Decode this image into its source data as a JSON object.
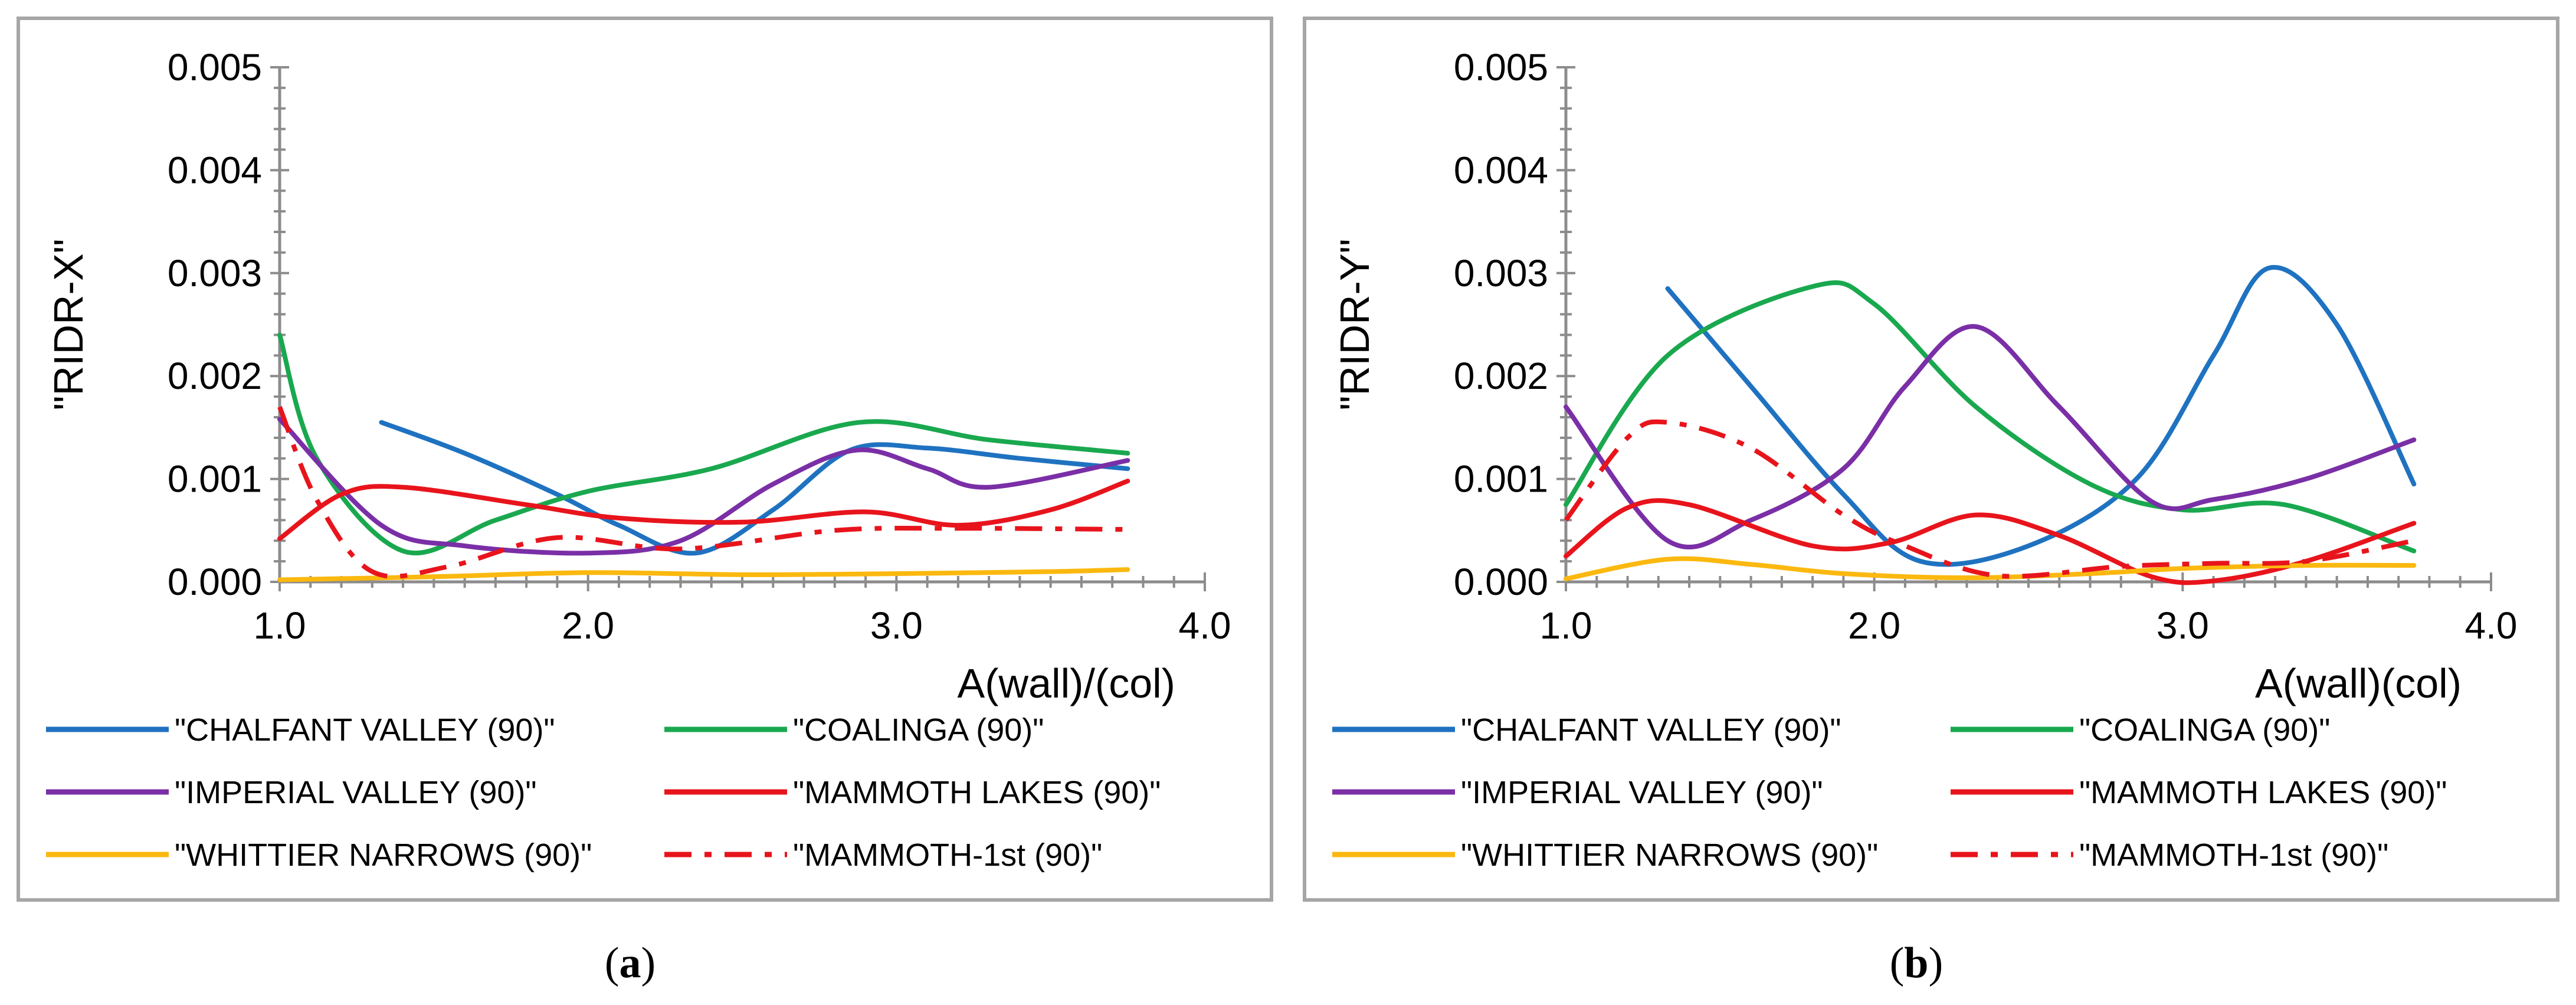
{
  "chart_data": [
    {
      "type": "line",
      "panel": "a",
      "xlabel": "A(wall)/(col)",
      "ylabel": "\"RIDR-X\"",
      "xlim": [
        1.0,
        4.0
      ],
      "ylim": [
        0.0,
        0.005
      ],
      "x_ticks": [
        "1.0",
        "2.0",
        "3.0",
        "4.0"
      ],
      "y_ticks": [
        "0.000",
        "0.001",
        "0.002",
        "0.003",
        "0.004",
        "0.005"
      ],
      "grid": false,
      "legend_position": "bottom",
      "series": [
        {
          "name": "\"CHALFANT VALLEY (90)\"",
          "color": "#1f72c0",
          "dash": "solid",
          "points": [
            [
              1.33,
              0.00155
            ],
            [
              1.6,
              0.00125
            ],
            [
              1.9,
              0.00085
            ],
            [
              2.1,
              0.00055
            ],
            [
              2.35,
              0.00028
            ],
            [
              2.6,
              0.0007
            ],
            [
              2.85,
              0.00128
            ],
            [
              3.1,
              0.0013
            ],
            [
              3.4,
              0.0012
            ],
            [
              3.75,
              0.0011
            ]
          ]
        },
        {
          "name": "\"COALINGA (90)\"",
          "color": "#1aa84f",
          "dash": "solid",
          "points": [
            [
              1.0,
              0.0024
            ],
            [
              1.12,
              0.0012
            ],
            [
              1.4,
              0.0003
            ],
            [
              1.7,
              0.0006
            ],
            [
              2.0,
              0.00088
            ],
            [
              2.4,
              0.0011
            ],
            [
              2.88,
              0.00155
            ],
            [
              3.3,
              0.00138
            ],
            [
              3.75,
              0.00125
            ]
          ]
        },
        {
          "name": "\"IMPERIAL VALLEY (90)\"",
          "color": "#7a2fa6",
          "dash": "solid",
          "points": [
            [
              1.0,
              0.00158
            ],
            [
              1.33,
              0.00055
            ],
            [
              1.6,
              0.00035
            ],
            [
              2.0,
              0.00028
            ],
            [
              2.3,
              0.0004
            ],
            [
              2.6,
              0.00095
            ],
            [
              2.87,
              0.00128
            ],
            [
              3.1,
              0.0011
            ],
            [
              3.3,
              0.00092
            ],
            [
              3.75,
              0.00118
            ]
          ]
        },
        {
          "name": "\"MAMMOTH LAKES (90)\"",
          "color": "#e8141c",
          "dash": "solid",
          "points": [
            [
              1.0,
              0.00042
            ],
            [
              1.2,
              0.00085
            ],
            [
              1.4,
              0.00092
            ],
            [
              1.8,
              0.00075
            ],
            [
              2.1,
              0.00062
            ],
            [
              2.5,
              0.00058
            ],
            [
              2.9,
              0.00068
            ],
            [
              3.2,
              0.00055
            ],
            [
              3.5,
              0.0007
            ],
            [
              3.75,
              0.00098
            ]
          ]
        },
        {
          "name": "\"WHITTIER NARROWS (90)\"",
          "color": "#fbb80f",
          "dash": "solid",
          "points": [
            [
              1.0,
              2e-05
            ],
            [
              1.5,
              5e-05
            ],
            [
              2.0,
              9e-05
            ],
            [
              2.5,
              7e-05
            ],
            [
              3.0,
              8e-05
            ],
            [
              3.5,
              0.0001
            ],
            [
              3.75,
              0.00012
            ]
          ]
        },
        {
          "name": "\"MAMMOTH-1st (90)\"",
          "color": "#e8141c",
          "dash": "dashdot",
          "points": [
            [
              1.0,
              0.0017
            ],
            [
              1.12,
              0.0008
            ],
            [
              1.3,
              0.0001
            ],
            [
              1.55,
              0.00015
            ],
            [
              1.9,
              0.00043
            ],
            [
              2.3,
              0.00032
            ],
            [
              2.8,
              0.0005
            ],
            [
              3.2,
              0.00052
            ],
            [
              3.75,
              0.00051
            ]
          ]
        }
      ]
    },
    {
      "type": "line",
      "panel": "b",
      "xlabel": "A(wall)(col)",
      "ylabel": "\"RIDR-Y\"",
      "xlim": [
        1.0,
        4.0
      ],
      "ylim": [
        0.0,
        0.005
      ],
      "x_ticks": [
        "1.0",
        "2.0",
        "3.0",
        "4.0"
      ],
      "y_ticks": [
        "0.000",
        "0.001",
        "0.002",
        "0.003",
        "0.004",
        "0.005"
      ],
      "grid": false,
      "legend_position": "bottom",
      "series": [
        {
          "name": "\"CHALFANT VALLEY (90)\"",
          "color": "#1f72c0",
          "dash": "solid",
          "points": [
            [
              1.33,
              0.00285
            ],
            [
              1.6,
              0.0019
            ],
            [
              1.9,
              0.00085
            ],
            [
              2.15,
              0.0002
            ],
            [
              2.5,
              0.00035
            ],
            [
              2.85,
              0.001
            ],
            [
              3.1,
              0.0022
            ],
            [
              3.28,
              0.00305
            ],
            [
              3.5,
              0.0025
            ],
            [
              3.75,
              0.00095
            ]
          ]
        },
        {
          "name": "\"COALINGA (90)\"",
          "color": "#1aa84f",
          "dash": "solid",
          "points": [
            [
              1.0,
              0.00075
            ],
            [
              1.33,
              0.0022
            ],
            [
              1.8,
              0.00287
            ],
            [
              2.0,
              0.0027
            ],
            [
              2.33,
              0.0017
            ],
            [
              2.7,
              0.00095
            ],
            [
              3.0,
              0.0007
            ],
            [
              3.33,
              0.00075
            ],
            [
              3.75,
              0.0003
            ]
          ]
        },
        {
          "name": "\"IMPERIAL VALLEY (90)\"",
          "color": "#7a2fa6",
          "dash": "solid",
          "points": [
            [
              1.0,
              0.0017
            ],
            [
              1.33,
              0.0004
            ],
            [
              1.6,
              0.0006
            ],
            [
              1.9,
              0.0011
            ],
            [
              2.1,
              0.0019
            ],
            [
              2.33,
              0.00248
            ],
            [
              2.6,
              0.0017
            ],
            [
              2.9,
              0.00078
            ],
            [
              3.1,
              0.0008
            ],
            [
              3.4,
              0.001
            ],
            [
              3.75,
              0.00138
            ]
          ]
        },
        {
          "name": "\"MAMMOTH LAKES (90)\"",
          "color": "#e8141c",
          "dash": "solid",
          "points": [
            [
              1.0,
              0.00025
            ],
            [
              1.2,
              0.00072
            ],
            [
              1.4,
              0.00075
            ],
            [
              1.8,
              0.00035
            ],
            [
              2.05,
              0.00038
            ],
            [
              2.33,
              0.00065
            ],
            [
              2.6,
              0.00045
            ],
            [
              2.9,
              5e-05
            ],
            [
              3.1,
              1e-05
            ],
            [
              3.4,
              0.0002
            ],
            [
              3.75,
              0.00057
            ]
          ]
        },
        {
          "name": "\"WHITTIER NARROWS (90)\"",
          "color": "#fbb80f",
          "dash": "solid",
          "points": [
            [
              1.0,
              3e-05
            ],
            [
              1.33,
              0.00022
            ],
            [
              1.6,
              0.00017
            ],
            [
              1.9,
              8e-05
            ],
            [
              2.3,
              4e-05
            ],
            [
              2.7,
              8e-05
            ],
            [
              3.0,
              0.00013
            ],
            [
              3.4,
              0.00016
            ],
            [
              3.75,
              0.00016
            ]
          ]
        },
        {
          "name": "\"MAMMOTH-1st (90)\"",
          "color": "#e8141c",
          "dash": "dashdot",
          "points": [
            [
              1.0,
              0.0006
            ],
            [
              1.2,
              0.0014
            ],
            [
              1.33,
              0.00155
            ],
            [
              1.6,
              0.0013
            ],
            [
              1.9,
              0.00065
            ],
            [
              2.1,
              0.00035
            ],
            [
              2.4,
              6e-05
            ],
            [
              2.8,
              0.00015
            ],
            [
              3.1,
              0.00018
            ],
            [
              3.4,
              0.0002
            ],
            [
              3.75,
              0.0004
            ]
          ]
        }
      ]
    }
  ],
  "captions": {
    "a_open": "(",
    "a_letter": "a",
    "a_close": ")",
    "b_open": "(",
    "b_letter": "b",
    "b_close": ")"
  }
}
